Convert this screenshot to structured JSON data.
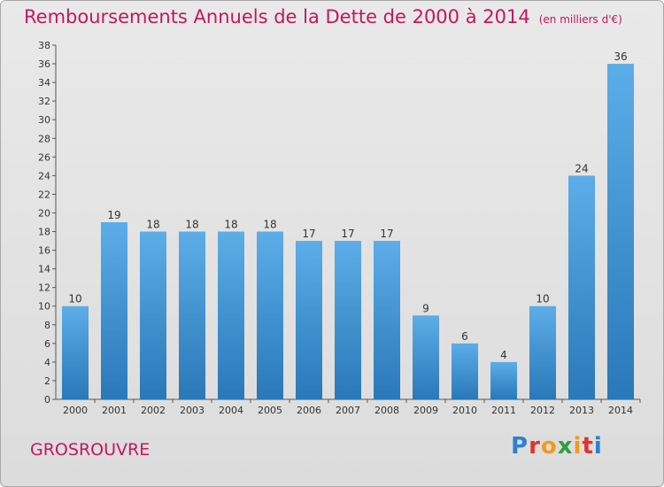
{
  "header": {
    "title": "Remboursements Annuels de la Dette de 2000 à 2014",
    "unit": "(en milliers d'€)"
  },
  "footer": {
    "commune": "GROSROUVRE",
    "logo": "Proxiti"
  },
  "colors": {
    "title": "#c2185b",
    "bar_light": "#5cade8",
    "bar_dark": "#2a78b8",
    "axis": "#555555"
  },
  "chart_data": {
    "type": "bar",
    "title": "Remboursements Annuels de la Dette de 2000 à 2014",
    "xlabel": "",
    "ylabel": "",
    "categories": [
      "2000",
      "2001",
      "2002",
      "2003",
      "2004",
      "2005",
      "2006",
      "2007",
      "2008",
      "2009",
      "2010",
      "2011",
      "2012",
      "2013",
      "2014"
    ],
    "values": [
      10,
      19,
      18,
      18,
      18,
      18,
      17,
      17,
      17,
      9,
      6,
      4,
      10,
      24,
      36
    ],
    "ylim": [
      0,
      38
    ],
    "ytick_step": 2,
    "grid": false,
    "data_labels": true
  }
}
